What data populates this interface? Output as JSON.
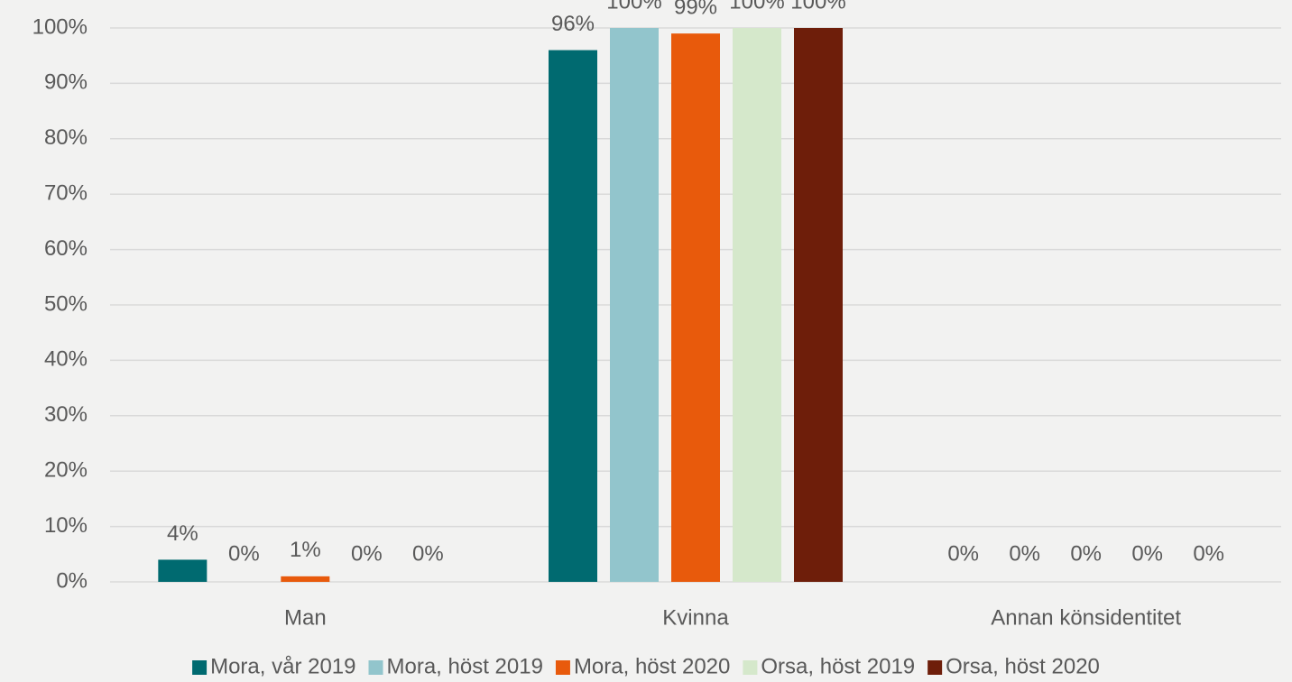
{
  "chart_data": {
    "type": "bar",
    "categories": [
      "Man",
      "Kvinna",
      "Annan könsidentitet"
    ],
    "series": [
      {
        "name": "Mora, vår 2019",
        "color": "#006a70",
        "values": [
          4,
          96,
          0
        ],
        "value_labels": [
          "4%",
          "96%",
          "0%"
        ]
      },
      {
        "name": "Mora, höst 2019",
        "color": "#92c5cc",
        "values": [
          0,
          100,
          0
        ],
        "value_labels": [
          "0%",
          "100%",
          "0%"
        ]
      },
      {
        "name": "Mora, höst 2020",
        "color": "#e85a0c",
        "values": [
          1,
          99,
          0
        ],
        "value_labels": [
          "1%",
          "99%",
          "0%"
        ]
      },
      {
        "name": "Orsa, höst 2019",
        "color": "#d5e8cb",
        "values": [
          0,
          100,
          0
        ],
        "value_labels": [
          "0%",
          "100%",
          "0%"
        ]
      },
      {
        "name": "Orsa, höst 2020",
        "color": "#6e1e0a",
        "values": [
          0,
          100,
          0
        ],
        "value_labels": [
          "0%",
          "100%",
          "0%"
        ]
      }
    ],
    "ylim": [
      0,
      100
    ],
    "yticks": [
      {
        "value": 0,
        "label": "0%"
      },
      {
        "value": 10,
        "label": "10%"
      },
      {
        "value": 20,
        "label": "20%"
      },
      {
        "value": 30,
        "label": "30%"
      },
      {
        "value": 40,
        "label": "40%"
      },
      {
        "value": 50,
        "label": "50%"
      },
      {
        "value": 60,
        "label": "60%"
      },
      {
        "value": 70,
        "label": "70%"
      },
      {
        "value": 80,
        "label": "80%"
      },
      {
        "value": 90,
        "label": "90%"
      },
      {
        "value": 100,
        "label": "100%"
      }
    ],
    "grid": true,
    "legend": "bottom"
  }
}
